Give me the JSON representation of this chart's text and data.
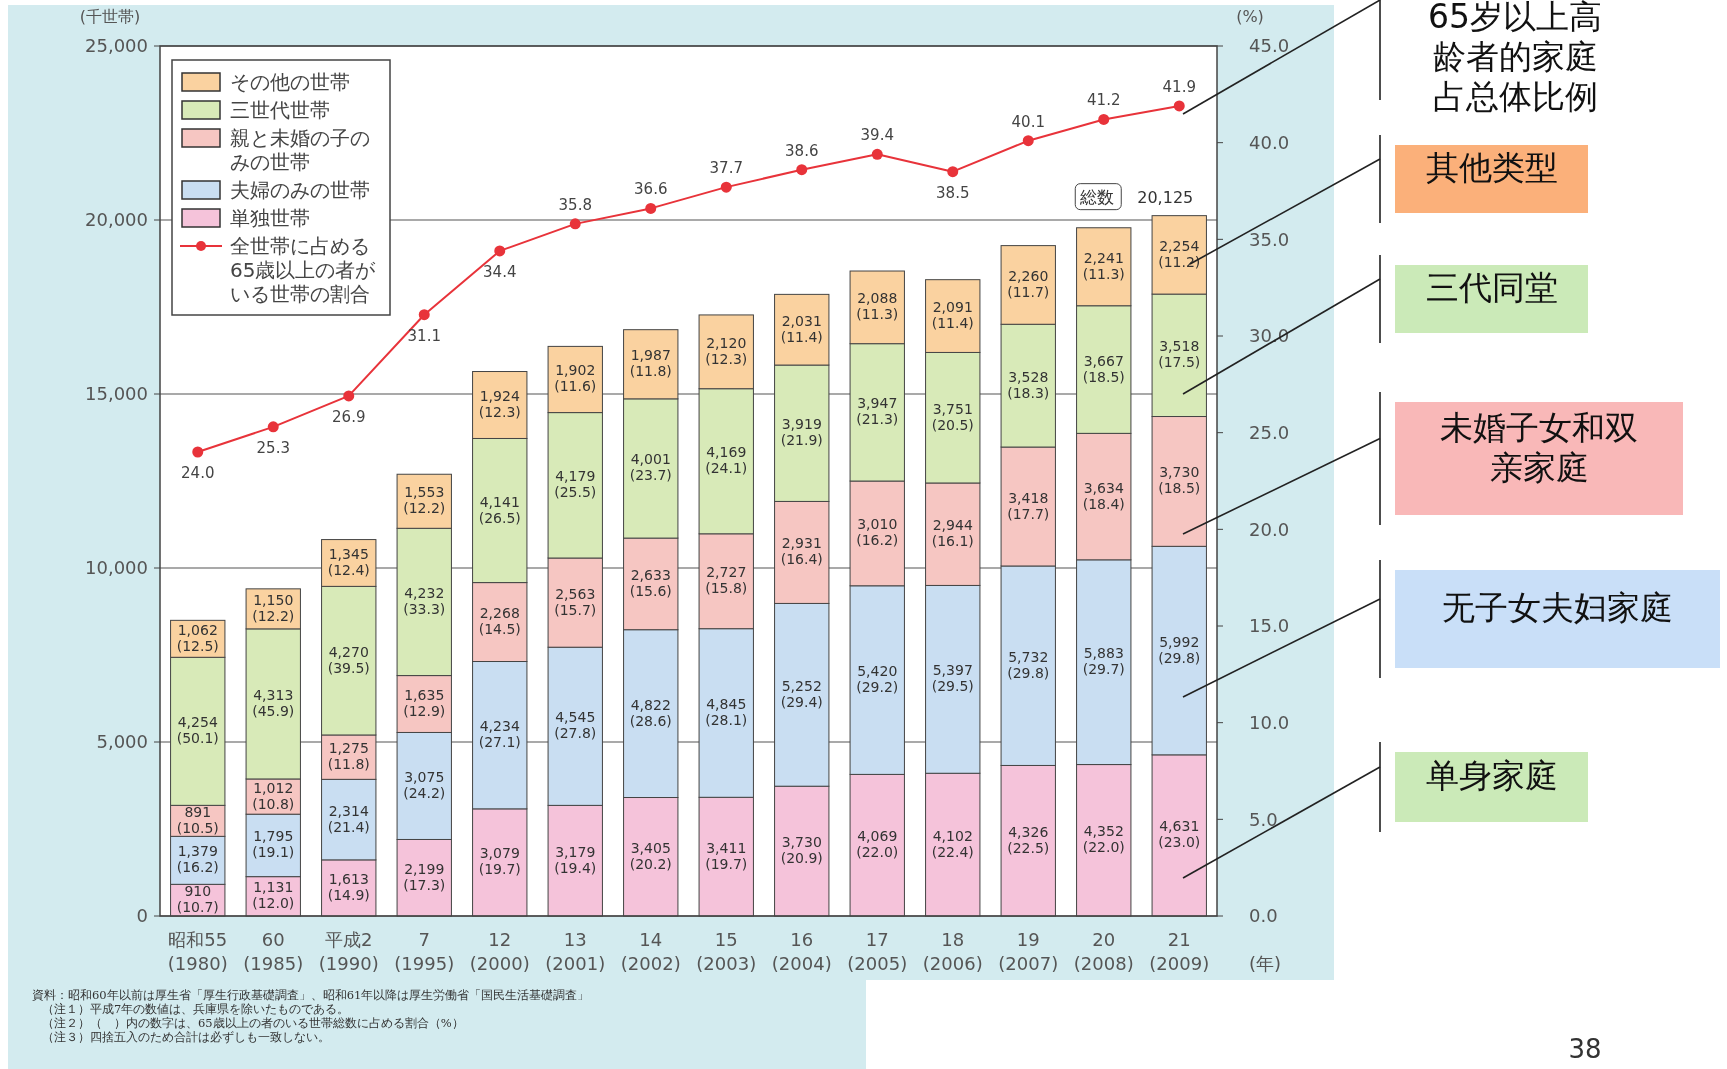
{
  "chart_data": {
    "type": "bar",
    "stacked": true,
    "ylabel": "(千世帯)",
    "y2label": "(%)",
    "xlabel": "(年)",
    "categories": [
      "昭和55\n(1980)",
      "60\n(1985)",
      "平成2\n(1990)",
      "7\n(1995)",
      "12\n(2000)",
      "13\n(2001)",
      "14\n(2002)",
      "15\n(2003)",
      "16\n(2004)",
      "17\n(2005)",
      "18\n(2006)",
      "19\n(2007)",
      "20\n(2008)",
      "21\n(2009)"
    ],
    "ylim": [
      0,
      25000
    ],
    "yticks": [
      0,
      {
        "value": 5000,
        "label": "5,000"
      },
      {
        "value": 10000,
        "label": "10,000"
      },
      {
        "value": 15000,
        "label": "15,000"
      },
      {
        "value": 20000,
        "label": "20,000"
      },
      {
        "value": 25000,
        "label": "25,000"
      }
    ],
    "y2lim": [
      0,
      45
    ],
    "y2ticks": [
      {
        "value": 0,
        "label": "0.0"
      },
      {
        "value": 5,
        "label": "5.0"
      },
      {
        "value": 10,
        "label": "10.0"
      },
      {
        "value": 15,
        "label": "15.0"
      },
      {
        "value": 20,
        "label": "20.0"
      },
      {
        "value": 25,
        "label": "25.0"
      },
      {
        "value": 30,
        "label": "30.0"
      },
      {
        "value": 35,
        "label": "35.0"
      },
      {
        "value": 40,
        "label": "40.0"
      },
      {
        "value": 45,
        "label": "45.0"
      }
    ],
    "grid": "y",
    "legend": "top left",
    "series": [
      {
        "name": "単独世帯",
        "color": "#f5c3da",
        "values": [
          910,
          1131,
          1613,
          2199,
          3079,
          3179,
          3405,
          3411,
          3730,
          4069,
          4102,
          4326,
          4352,
          4631
        ],
        "value_labels": [
          "910\n(10.7)",
          "1,131\n(12.0)",
          "1,613\n(14.9)",
          "2,199\n(17.3)",
          "3,079\n(19.7)",
          "3,179\n(19.4)",
          "3,405\n(20.2)",
          "3,411\n(19.7)",
          "3,730\n(20.9)",
          "4,069\n(22.0)",
          "4,102\n(22.4)",
          "4,326\n(22.5)",
          "4,352\n(22.0)",
          "4,631\n(23.0)"
        ]
      },
      {
        "name": "夫婦のみの世帯",
        "color": "#c9def2",
        "values": [
          1379,
          1795,
          2314,
          3075,
          4234,
          4545,
          4822,
          4845,
          5252,
          5420,
          5397,
          5732,
          5883,
          5992
        ],
        "value_labels": [
          "1,379\n(16.2)",
          "1,795\n(19.1)",
          "2,314\n(21.4)",
          "3,075\n(24.2)",
          "4,234\n(27.1)",
          "4,545\n(27.8)",
          "4,822\n(28.6)",
          "4,845\n(28.1)",
          "5,252\n(29.4)",
          "5,420\n(29.2)",
          "5,397\n(29.5)",
          "5,732\n(29.8)",
          "5,883\n(29.7)",
          "5,992\n(29.8)"
        ]
      },
      {
        "name": "親と未婚の子のみの世帯",
        "color": "#f6c6c2",
        "values": [
          891,
          1012,
          1275,
          1635,
          2268,
          2563,
          2633,
          2727,
          2931,
          3010,
          2944,
          3418,
          3634,
          3730
        ],
        "value_labels": [
          "891\n(10.5)",
          "1,012\n(10.8)",
          "1,275\n(11.8)",
          "1,635\n(12.9)",
          "2,268\n(14.5)",
          "2,563\n(15.7)",
          "2,633\n(15.6)",
          "2,727\n(15.8)",
          "2,931\n(16.4)",
          "3,010\n(16.2)",
          "2,944\n(16.1)",
          "3,418\n(17.7)",
          "3,634\n(18.4)",
          "3,730\n(18.5)"
        ]
      },
      {
        "name": "三世代世帯",
        "color": "#d8eab8",
        "values": [
          4254,
          4313,
          4270,
          4232,
          4141,
          4179,
          4001,
          4169,
          3919,
          3947,
          3751,
          3528,
          3667,
          3518
        ],
        "value_labels": [
          "4,254\n(50.1)",
          "4,313\n(45.9)",
          "4,270\n(39.5)",
          "4,232\n(33.3)",
          "4,141\n(26.5)",
          "4,179\n(25.5)",
          "4,001\n(23.7)",
          "4,169\n(24.1)",
          "3,919\n(21.9)",
          "3,947\n(21.3)",
          "3,751\n(20.5)",
          "3,528\n(18.3)",
          "3,667\n(18.5)",
          "3,518\n(17.5)"
        ]
      },
      {
        "name": "その他の世帯",
        "color": "#fad2a0",
        "values": [
          1062,
          1150,
          1345,
          1553,
          1924,
          1902,
          1987,
          2120,
          2031,
          2088,
          2091,
          2260,
          2241,
          2254
        ],
        "value_labels": [
          "1,062\n(12.5)",
          "1,150\n(12.2)",
          "1,345\n(12.4)",
          "1,553\n(12.2)",
          "1,924\n(12.3)",
          "1,902\n(11.6)",
          "1,987\n(11.8)",
          "2,120\n(12.3)",
          "2,031\n(11.4)",
          "2,088\n(11.3)",
          "2,091\n(11.4)",
          "2,260\n(11.7)",
          "2,241\n(11.3)",
          "2,254\n(11.2)"
        ]
      },
      {
        "name": "全世帯に占める65歳以上の者がいる世帯の割合",
        "type": "line",
        "axis": "y2",
        "color": "#e8333a",
        "marker": "circle",
        "values": [
          24.0,
          25.3,
          26.9,
          31.1,
          34.4,
          35.8,
          36.6,
          37.7,
          38.6,
          39.4,
          38.5,
          40.1,
          41.2,
          41.9
        ],
        "value_labels": [
          "24.0",
          "25.3",
          "26.9",
          "31.1",
          "34.4",
          "35.8",
          "36.6",
          "37.7",
          "38.6",
          "39.4",
          "38.5",
          "40.1",
          "41.2",
          "41.9"
        ]
      }
    ],
    "totals": [
      null,
      null,
      null,
      null,
      null,
      null,
      null,
      null,
      null,
      null,
      null,
      null,
      null,
      "総数 20,125"
    ],
    "annotations": [
      "65岁以上高龄者的家庭占总体比例",
      "其他类型",
      "三代同堂",
      "未婚子女和双亲家庭",
      "无子女夫妇家庭",
      "单身家庭",
      "資料：昭和60年以前は厚生省「厚生行政基礎調査」、昭和61年以降は厚生労働省「国民生活基礎調査」",
      "（注１）平成7年の数値は、兵庫県を除いたものである。",
      "（注２）（　）内の数字は、65歳以上の者のいる世帯総数に占める割合（%）",
      "（注３）四捨五入のため合計は必ずしも一致しない。",
      "38"
    ]
  }
}
